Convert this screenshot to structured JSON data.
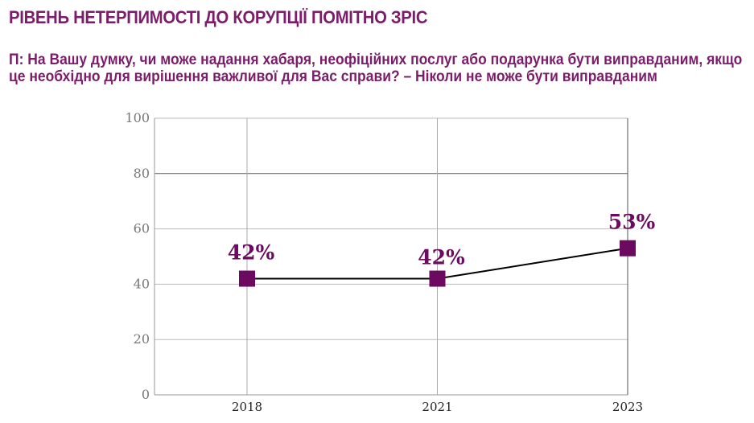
{
  "title": "РІВЕНЬ НЕТЕРПИМОСТІ ДО КОРУПЦІЇ ПОМІТНО ЗРІС",
  "subtitle": "П: На Вашу думку, чи може надання хабаря, неофіційних послуг або подарунка бути виправданим, якщо це необхідно для вирішення важливої для Вас справи? – Ніколи не може бути виправданим",
  "chart_data": {
    "type": "line",
    "title": "РІВЕНЬ НЕТЕРПИМОСТІ ДО КОРУПЦІЇ ПОМІТНО ЗРІС",
    "categories": [
      "2018",
      "2021",
      "2023"
    ],
    "series": [
      {
        "name": "Ніколи не може бути виправданим",
        "values": [
          42,
          42,
          53
        ],
        "labels": [
          "42%",
          "42%",
          "53%"
        ]
      }
    ],
    "yticks": [
      "0",
      "20",
      "40",
      "60",
      "80",
      "100"
    ],
    "ylim": [
      0,
      100
    ],
    "grid": true,
    "marker_color": "#6b0a5e",
    "line_color": "#000000"
  }
}
